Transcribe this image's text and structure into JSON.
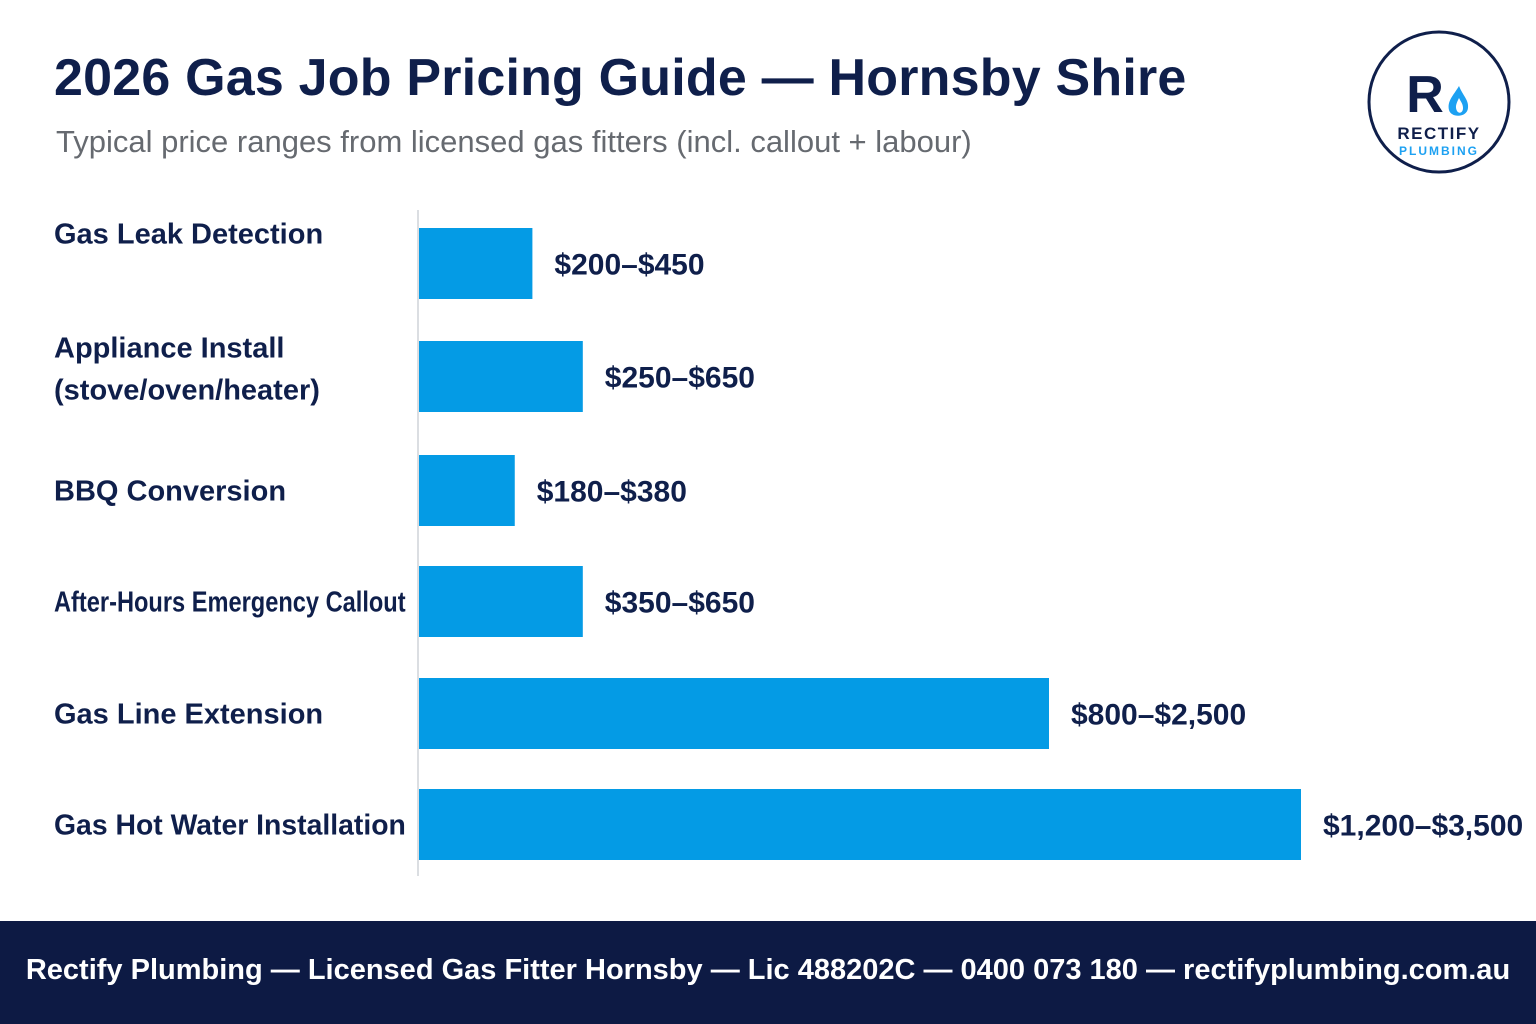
{
  "header": {
    "title": "2026 Gas Job Pricing Guide — Hornsby Shire",
    "subtitle": "Typical price ranges from licensed gas fitters (incl. callout + labour)"
  },
  "logo": {
    "brand": "RECTIFY",
    "sub": "PLUMBING",
    "initial": "R",
    "icon": "flame-icon",
    "colors": {
      "navy": "#0f1f4b",
      "accent": "#1da1f2"
    }
  },
  "chart_data": {
    "type": "bar",
    "orientation": "horizontal",
    "categories": [
      [
        "Gas Leak Detection"
      ],
      [
        "Appliance Install",
        "(stove/oven/heater)"
      ],
      [
        "BBQ Conversion"
      ],
      [
        "After-Hours Emergency Callout"
      ],
      [
        "Gas Line Extension"
      ],
      [
        "Gas Hot Water Installation"
      ]
    ],
    "series": [
      {
        "values": [
          450,
          650,
          380,
          650,
          2500,
          3500
        ],
        "ranges": [
          [
            200,
            450
          ],
          [
            250,
            650
          ],
          [
            180,
            380
          ],
          [
            350,
            650
          ],
          [
            800,
            2500
          ],
          [
            1200,
            3500
          ]
        ],
        "data_labels": [
          "$200–$450",
          "$250–$650",
          "$180–$380",
          "$350–$650",
          "$800–$2,500",
          "$1,200–$3,500"
        ]
      }
    ],
    "bar_color": "#049be5",
    "axis_line_color": "#cfd3d8",
    "label_color": "#0f1f4b",
    "grid": false,
    "legend": "none"
  },
  "footer": {
    "text": "Rectify Plumbing — Licensed Gas Fitter Hornsby — Lic 488202C — 0400 073 180 — rectifyplumbing.com.au",
    "background": "#0d1a44"
  }
}
